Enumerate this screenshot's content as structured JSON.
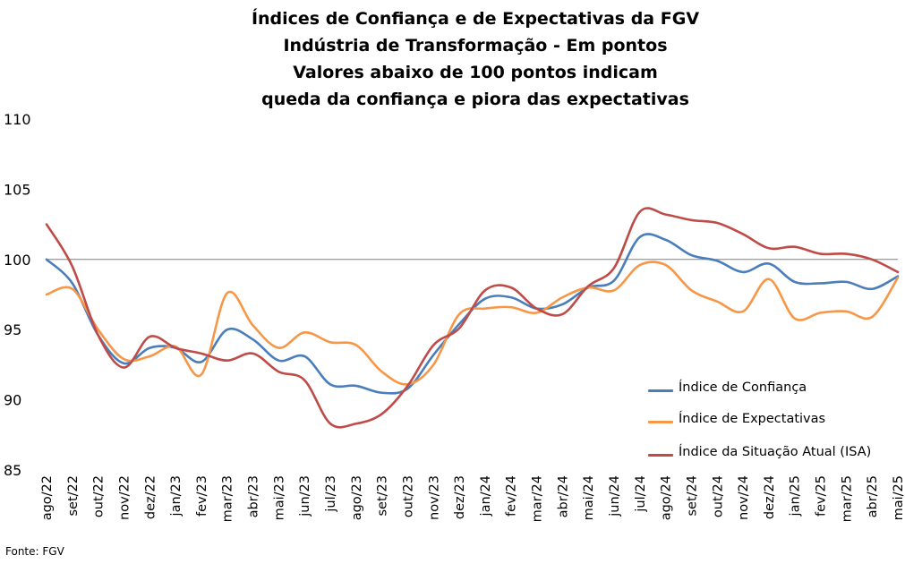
{
  "title_lines": [
    "Índices de Confiança e de Expectativas da FGV",
    "Indústria de Transformação - Em pontos",
    "Valores abaixo de 100 pontos indicam",
    "queda da confiança e piora das expectativas"
  ],
  "source": "Fonte: FGV",
  "colors": {
    "confianca": "#4a7ebb",
    "expectativas": "#f79646",
    "isa": "#be4b48",
    "reference": "#808080"
  },
  "chart_data": {
    "type": "line",
    "title": "Índices de Confiança e de Expectativas da FGV Indústria de Transformação - Em pontos Valores abaixo de 100 pontos indicam queda da confiança e piora das expectativas",
    "xlabel": "",
    "ylabel": "",
    "ylim": [
      85,
      110
    ],
    "yticks": [
      "85",
      "90",
      "95",
      "100",
      "105",
      "110"
    ],
    "reference_line": 100,
    "grid": false,
    "legend_position": "bottom-right",
    "categories": [
      "ago/22",
      "set/22",
      "out/22",
      "nov/22",
      "dez/22",
      "jan/23",
      "fev/23",
      "mar/23",
      "abr/23",
      "mai/23",
      "jun/23",
      "jul/23",
      "ago/23",
      "set/23",
      "out/23",
      "nov/23",
      "dez/23",
      "jan/24",
      "fev/24",
      "mar/24",
      "abr/24",
      "mai/24",
      "jun/24",
      "jul/24",
      "ago/24",
      "set/24",
      "out/24",
      "nov/24",
      "dez/24",
      "jan/25",
      "fev/25",
      "mar/25",
      "abr/25",
      "mai/25"
    ],
    "series": [
      {
        "name": "Índice de Confiança",
        "color": "#4a7ebb",
        "values": [
          100.0,
          98.3,
          94.6,
          92.6,
          93.7,
          93.7,
          92.7,
          95.0,
          94.3,
          92.8,
          93.1,
          91.1,
          91.0,
          90.5,
          90.8,
          93.2,
          95.4,
          97.2,
          97.3,
          96.5,
          96.8,
          98.0,
          98.5,
          101.6,
          101.4,
          100.3,
          99.9,
          99.1,
          99.7,
          98.4,
          98.3,
          98.4,
          97.9,
          98.8
        ]
      },
      {
        "name": "Índice de Expectativas",
        "color": "#f79646",
        "values": [
          97.5,
          97.9,
          95.0,
          92.9,
          93.1,
          93.8,
          91.8,
          97.6,
          95.3,
          93.7,
          94.8,
          94.1,
          93.9,
          92.0,
          91.1,
          92.5,
          96.1,
          96.5,
          96.6,
          96.2,
          97.3,
          98.0,
          97.8,
          99.6,
          99.6,
          97.8,
          97.0,
          96.3,
          98.6,
          95.8,
          96.2,
          96.3,
          95.9,
          98.7
        ]
      },
      {
        "name": "Índice da Situação Atual (ISA)",
        "color": "#be4b48",
        "values": [
          102.5,
          99.5,
          94.6,
          92.3,
          94.5,
          93.7,
          93.3,
          92.8,
          93.3,
          92.0,
          91.4,
          88.3,
          88.3,
          89.0,
          91.0,
          93.9,
          95.1,
          97.8,
          98.0,
          96.5,
          96.1,
          98.1,
          99.4,
          103.4,
          103.2,
          102.8,
          102.6,
          101.8,
          100.8,
          100.9,
          100.4,
          100.4,
          100.0,
          99.1
        ]
      }
    ]
  }
}
